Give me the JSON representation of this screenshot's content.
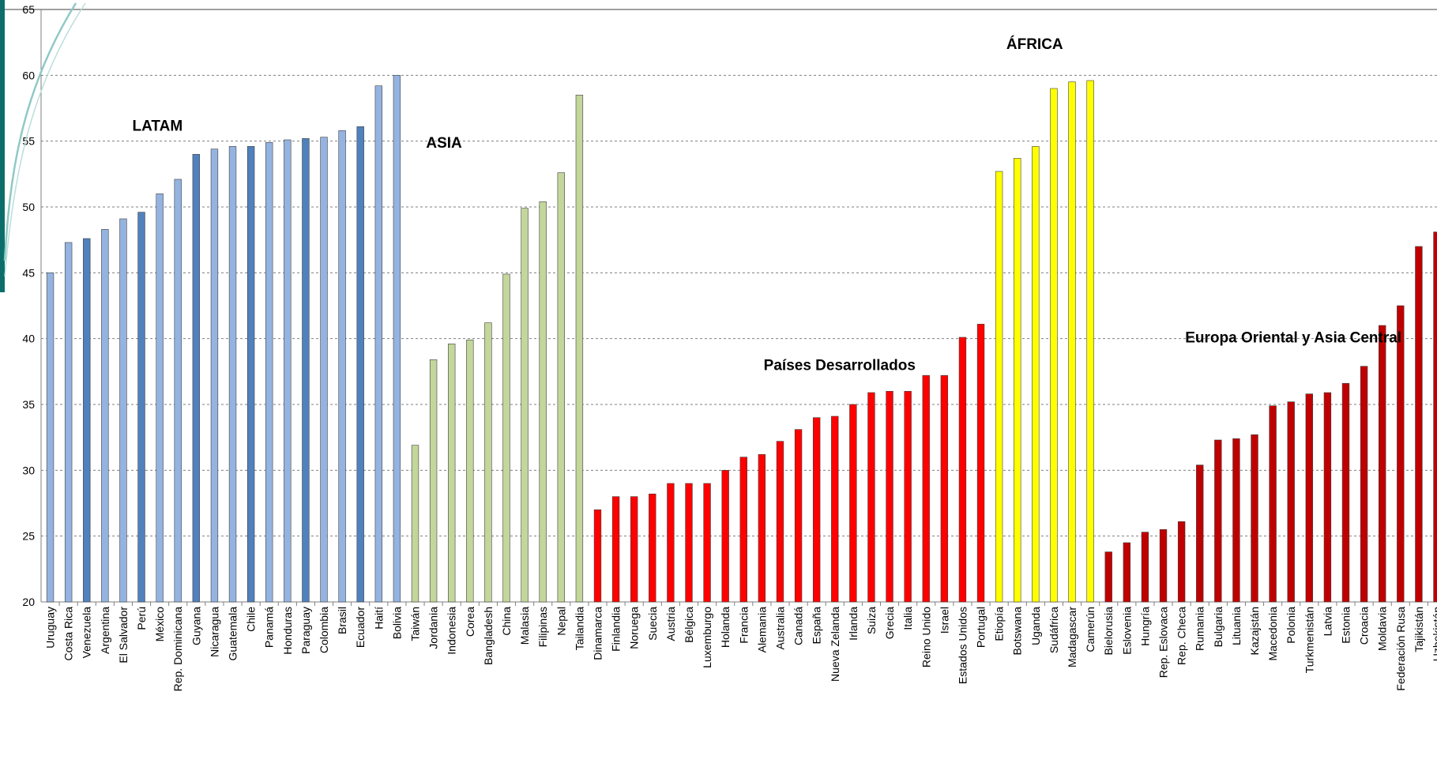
{
  "chart_data": {
    "type": "bar",
    "title": "",
    "xlabel": "",
    "ylabel": "",
    "ylim": [
      20,
      65
    ],
    "yticks": [
      20,
      25,
      30,
      35,
      40,
      45,
      50,
      55,
      60,
      65
    ],
    "grid": true,
    "groups": [
      {
        "name": "LATAM",
        "color": "#95b3e0",
        "dark_color": "#4f81bd",
        "categories": [
          "Uruguay",
          "Costa Rica",
          "Venezuela",
          "Argentina",
          "El Salvador",
          "Perú",
          "México",
          "Rep. Dominicana",
          "Guyana",
          "Nicaragua",
          "Guatemala",
          "Chile",
          "Panamá",
          "Honduras",
          "Paraguay",
          "Colombia",
          "Brasil",
          "Ecuador",
          "Haití",
          "Bolivia"
        ],
        "values": [
          45.0,
          47.3,
          47.6,
          48.3,
          49.1,
          49.6,
          51.0,
          52.1,
          54.0,
          54.4,
          54.6,
          54.6,
          54.9,
          55.1,
          55.2,
          55.3,
          55.8,
          56.1,
          59.2,
          60.0
        ]
      },
      {
        "name": "ASIA",
        "color": "#c3d69b",
        "dark_color": "#9bbb59",
        "categories": [
          "Taiwán",
          "Jordania",
          "Indonesia",
          "Corea",
          "Bangladesh",
          "China",
          "Malasia",
          "Filipinas",
          "Nepal",
          "Tailandia"
        ],
        "values": [
          31.9,
          38.4,
          39.6,
          39.9,
          41.2,
          44.9,
          49.9,
          50.4,
          52.6,
          58.5
        ]
      },
      {
        "name": "Países Desarrollados",
        "color": "#ff0000",
        "dark_color": "#c00000",
        "categories": [
          "Dinamarca",
          "Finlandia",
          "Noruega",
          "Suecia",
          "Austria",
          "Bélgica",
          "Luxemburgo",
          "Holanda",
          "Francia",
          "Alemania",
          "Australia",
          "Canadá",
          "España",
          "Nueva Zelanda",
          "Irlanda",
          "Suiza",
          "Grecia",
          "Italia",
          "Reino Unido",
          "Israel",
          "Estados Unidos",
          "Portugal"
        ],
        "values": [
          27.0,
          28.0,
          28.0,
          28.2,
          29.0,
          29.0,
          29.0,
          30.0,
          31.0,
          31.2,
          32.2,
          33.1,
          34.0,
          34.1,
          35.0,
          35.9,
          36.0,
          36.0,
          37.2,
          37.2,
          40.1,
          41.1
        ]
      },
      {
        "name": "ÁFRICA",
        "color": "#ffff00",
        "dark_color": "#d6d600",
        "categories": [
          "Etiopía",
          "Botswana",
          "Uganda",
          "Sudáfrica",
          "Madagascar",
          "Camerún"
        ],
        "values": [
          52.7,
          53.7,
          54.6,
          59.0,
          59.5,
          59.6
        ]
      },
      {
        "name": "Europa Oriental y Asia Central",
        "color": "#c00000",
        "dark_color": "#800000",
        "categories": [
          "Bielorusia",
          "Eslovenia",
          "Hungría",
          "Rep. Eslovaca",
          "Rep. Checa",
          "Rumania",
          "Bulgaria",
          "Lituania",
          "Kazajstán",
          "Macedonia",
          "Polonia",
          "Turkmenistán",
          "Latvia",
          "Estonia",
          "Croacia",
          "Moldavia",
          "Federación Rusa",
          "Tajikistán",
          "Uzbekistán"
        ],
        "values": [
          23.8,
          24.5,
          25.3,
          25.5,
          26.1,
          30.4,
          32.3,
          32.4,
          32.7,
          34.9,
          35.2,
          35.8,
          35.9,
          36.6,
          37.9,
          41.0,
          42.5,
          47.0,
          48.1
        ]
      }
    ]
  }
}
